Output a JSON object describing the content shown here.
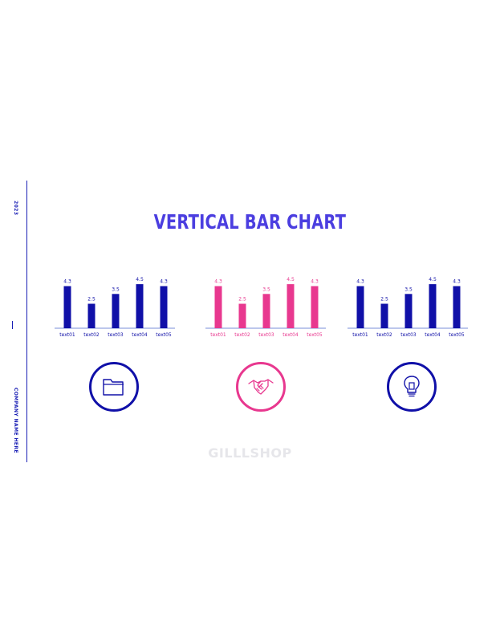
{
  "slide": {
    "title": "VERTICAL BAR CHART",
    "year": "2023",
    "company": "COMPANY NAME HERE",
    "watermark": "GILLLSHOP"
  },
  "colors": {
    "primary": "#1010a8",
    "accent": "#e8388f",
    "title": "#4b3ee0",
    "axis": "#7a8fd8"
  },
  "icons": [
    "folder-icon",
    "handshake-icon",
    "lightbulb-icon"
  ],
  "chart_data": [
    {
      "type": "bar",
      "categories": [
        "text01",
        "text02",
        "text03",
        "text04",
        "text05"
      ],
      "values": [
        4.3,
        2.5,
        3.5,
        4.5,
        4.3
      ],
      "value_labels": [
        "4.3",
        "2.5",
        "3.5",
        "4.5",
        "4.3"
      ],
      "color": "#1010a8",
      "ylim": [
        0,
        5
      ],
      "grid": false
    },
    {
      "type": "bar",
      "categories": [
        "text01",
        "text02",
        "text03",
        "text04",
        "text05"
      ],
      "values": [
        4.3,
        2.5,
        3.5,
        4.5,
        4.3
      ],
      "value_labels": [
        "4.3",
        "2.5",
        "3.5",
        "4.5",
        "4.3"
      ],
      "color": "#e8388f",
      "ylim": [
        0,
        5
      ],
      "grid": false
    },
    {
      "type": "bar",
      "categories": [
        "text01",
        "text02",
        "text03",
        "text04",
        "text05"
      ],
      "values": [
        4.3,
        2.5,
        3.5,
        4.5,
        4.3
      ],
      "value_labels": [
        "4.3",
        "2.5",
        "3.5",
        "4.5",
        "4.3"
      ],
      "color": "#1010a8",
      "ylim": [
        0,
        5
      ],
      "grid": false
    }
  ]
}
